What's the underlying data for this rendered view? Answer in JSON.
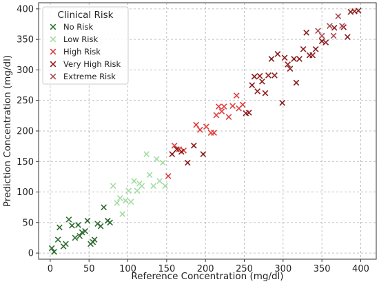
{
  "chart_data": {
    "type": "scatter",
    "title": "",
    "xlabel": "Reference Concentration (mg/dl)",
    "ylabel": "Prediction Concentration (mg/dl)",
    "xlim": [
      -15,
      420
    ],
    "ylim": [
      -10,
      410
    ],
    "xticks": [
      0,
      50,
      100,
      150,
      200,
      250,
      300,
      350,
      400
    ],
    "yticks": [
      0,
      50,
      100,
      150,
      200,
      250,
      300,
      350,
      400
    ],
    "grid": true,
    "marker": "x",
    "legend": {
      "title": "Clinical Risk",
      "position": "top-left"
    },
    "series": [
      {
        "name": "No Risk",
        "color": "#2e6b2e",
        "points": [
          [
            2,
            8
          ],
          [
            5,
            2
          ],
          [
            10,
            22
          ],
          [
            12,
            42
          ],
          [
            17,
            11
          ],
          [
            20,
            15
          ],
          [
            24,
            55
          ],
          [
            28,
            45
          ],
          [
            32,
            25
          ],
          [
            36,
            46
          ],
          [
            38,
            28
          ],
          [
            41,
            34
          ],
          [
            45,
            36
          ],
          [
            48,
            53
          ],
          [
            52,
            15
          ],
          [
            55,
            18
          ],
          [
            57,
            22
          ],
          [
            61,
            48
          ],
          [
            65,
            44
          ],
          [
            69,
            75
          ],
          [
            74,
            53
          ],
          [
            77,
            50
          ]
        ]
      },
      {
        "name": "Low Risk",
        "color": "#a3dca3",
        "points": [
          [
            81,
            110
          ],
          [
            86,
            82
          ],
          [
            90,
            90
          ],
          [
            93,
            64
          ],
          [
            97,
            86
          ],
          [
            101,
            102
          ],
          [
            104,
            84
          ],
          [
            108,
            118
          ],
          [
            112,
            102
          ],
          [
            115,
            114
          ],
          [
            118,
            110
          ],
          [
            124,
            162
          ],
          [
            128,
            128
          ],
          [
            133,
            110
          ],
          [
            137,
            154
          ],
          [
            141,
            118
          ],
          [
            145,
            148
          ],
          [
            148,
            110
          ]
        ]
      },
      {
        "name": "High Risk",
        "color": "#e03c3c",
        "points": [
          [
            152,
            126
          ],
          [
            160,
            176
          ],
          [
            166,
            170
          ],
          [
            172,
            168
          ],
          [
            188,
            210
          ],
          [
            193,
            202
          ],
          [
            201,
            207
          ],
          [
            207,
            197
          ],
          [
            211,
            197
          ],
          [
            214,
            226
          ],
          [
            217,
            240
          ],
          [
            221,
            232
          ],
          [
            224,
            240
          ],
          [
            230,
            223
          ],
          [
            235,
            241
          ],
          [
            240,
            258
          ],
          [
            243,
            237
          ],
          [
            248,
            243
          ]
        ]
      },
      {
        "name": "Very High Risk",
        "color": "#8b1a1a",
        "points": [
          [
            157,
            162
          ],
          [
            163,
            170
          ],
          [
            169,
            166
          ],
          [
            177,
            148
          ],
          [
            185,
            176
          ],
          [
            197,
            162
          ],
          [
            252,
            229
          ],
          [
            256,
            230
          ],
          [
            260,
            275
          ],
          [
            263,
            289
          ],
          [
            267,
            265
          ],
          [
            270,
            290
          ],
          [
            273,
            281
          ],
          [
            277,
            262
          ],
          [
            281,
            291
          ],
          [
            285,
            318
          ],
          [
            289,
            291
          ],
          [
            293,
            326
          ],
          [
            299,
            246
          ],
          [
            302,
            320
          ],
          [
            306,
            309
          ],
          [
            309,
            302
          ],
          [
            314,
            318
          ],
          [
            317,
            279
          ],
          [
            321,
            318
          ],
          [
            326,
            334
          ],
          [
            330,
            361
          ],
          [
            334,
            324
          ],
          [
            338,
            324
          ],
          [
            342,
            334
          ],
          [
            350,
            347
          ],
          [
            355,
            345
          ],
          [
            366,
            369
          ],
          [
            378,
            370
          ],
          [
            383,
            354
          ],
          [
            387,
            395
          ],
          [
            392,
            396
          ],
          [
            397,
            397
          ]
        ]
      },
      {
        "name": "Extreme Risk",
        "color": "#a94b55",
        "points": [
          [
            345,
            364
          ],
          [
            350,
            356
          ],
          [
            360,
            372
          ],
          [
            365,
            356
          ],
          [
            371,
            388
          ],
          [
            376,
            372
          ]
        ]
      }
    ]
  }
}
